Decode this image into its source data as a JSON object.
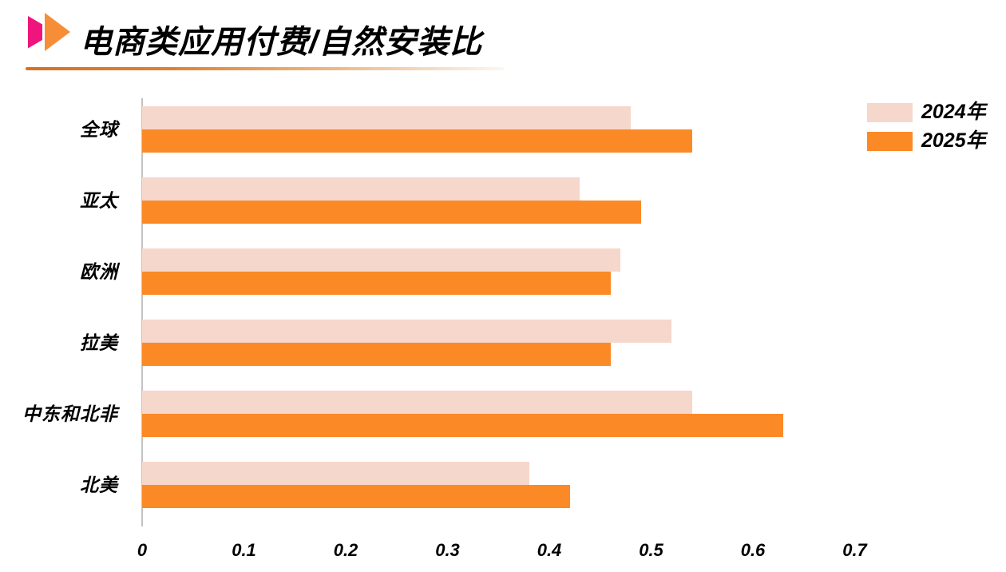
{
  "header": {
    "title": "电商类应用付费/自然安装比"
  },
  "chart_data": {
    "type": "bar",
    "orientation": "horizontal",
    "title": "电商类应用付费/自然安装比",
    "categories": [
      "全球",
      "亚太",
      "欧洲",
      "拉美",
      "中东和北非",
      "北美"
    ],
    "series": [
      {
        "name": "2024年",
        "color": "#F6D7CB",
        "values": [
          0.48,
          0.43,
          0.47,
          0.52,
          0.54,
          0.38
        ]
      },
      {
        "name": "2025年",
        "color": "#FB8A26",
        "values": [
          0.54,
          0.49,
          0.46,
          0.46,
          0.63,
          0.42
        ]
      }
    ],
    "xlabel": "",
    "ylabel": "",
    "xlim": [
      0,
      0.7
    ],
    "x_ticks": [
      0,
      0.1,
      0.2,
      0.3,
      0.4,
      0.5,
      0.6,
      0.7
    ],
    "x_tick_labels": [
      "0",
      "0.1",
      "0.2",
      "0.3",
      "0.4",
      "0.5",
      "0.6",
      "0.7"
    ],
    "grid": false,
    "legend_position": "top-right"
  },
  "colors": {
    "bar_2024": "#F6D7CB",
    "bar_2025": "#FB8A26",
    "logo_magenta": "#F0147D",
    "logo_orange": "#F78D37",
    "divider_orange": "#D9701E",
    "axis_line": "#C3C3C3",
    "text": "#000000"
  },
  "icons": {
    "brand_logo": "double-right-chevron-play"
  }
}
